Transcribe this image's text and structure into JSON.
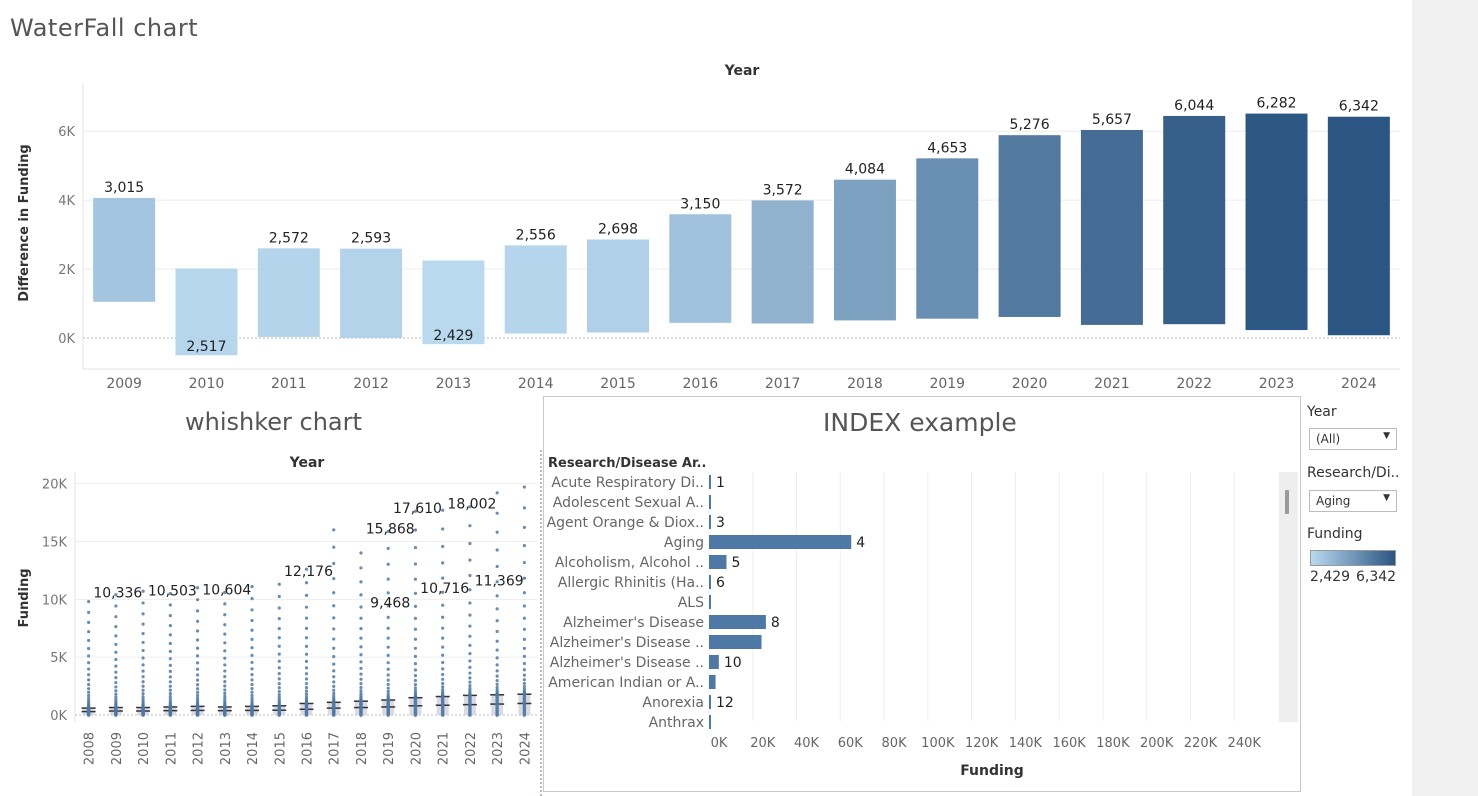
{
  "dashboard": {
    "title": "WaterFall  chart",
    "whisker_title": "whishker chart",
    "index_title": "INDEX example"
  },
  "filters": {
    "year_label": "Year",
    "year_value": "(All)",
    "research_label": "Research/Di..",
    "research_value": "Aging",
    "funding_label": "Funding",
    "funding_min": "2,429",
    "funding_max": "6,342",
    "legend_colors": [
      "#b9d9ef",
      "#2b5582"
    ]
  },
  "chart_data": [
    {
      "type": "bar",
      "subtype": "waterfall",
      "xlabel": "Year",
      "ylabel": "Difference in Funding",
      "categories": [
        "2009",
        "2010",
        "2011",
        "2012",
        "2013",
        "2014",
        "2015",
        "2016",
        "2017",
        "2018",
        "2019",
        "2020",
        "2021",
        "2022",
        "2023",
        "2024"
      ],
      "values": [
        3015,
        2517,
        2572,
        2593,
        2429,
        2556,
        2698,
        3150,
        3572,
        4084,
        4653,
        5276,
        5657,
        6044,
        6282,
        6342
      ],
      "labels": [
        "3,015",
        "2,517",
        "2,572",
        "2,593",
        "2,429",
        "2,556",
        "2,698",
        "3,150",
        "3,572",
        "4,084",
        "4,653",
        "5,276",
        "5,657",
        "6,044",
        "6,282",
        "6,342"
      ],
      "bar_low": [
        1050,
        -500,
        30,
        0,
        -180,
        130,
        160,
        440,
        420,
        510,
        560,
        610,
        380,
        400,
        230,
        80
      ],
      "bar_high": [
        4065,
        2017,
        2602,
        2593,
        2249,
        2686,
        2858,
        3590,
        3992,
        4594,
        5213,
        5886,
        6037,
        6444,
        6512,
        6422
      ],
      "label_position": [
        "above",
        "below",
        "above",
        "above",
        "below",
        "above",
        "above",
        "above",
        "above",
        "above",
        "above",
        "above",
        "above",
        "above",
        "above",
        "above"
      ],
      "ylim": [
        -900,
        7400
      ],
      "yticks": [
        0,
        2000,
        4000,
        6000
      ],
      "ytick_labels": [
        "0K",
        "2K",
        "4K",
        "6K"
      ],
      "color_scale": [
        "#b9d9ef",
        "#2b5582"
      ],
      "grid": true
    },
    {
      "type": "boxplot",
      "xlabel": "Year",
      "ylabel": "Funding",
      "categories": [
        "2008",
        "2009",
        "2010",
        "2011",
        "2012",
        "2013",
        "2014",
        "2015",
        "2016",
        "2017",
        "2018",
        "2019",
        "2020",
        "2021",
        "2022",
        "2023",
        "2024"
      ],
      "max_outlier": [
        9800,
        10400,
        10700,
        10500,
        11000,
        10600,
        11100,
        11300,
        12600,
        16000,
        14000,
        15868,
        17610,
        17700,
        18002,
        19200,
        19700
      ],
      "outlier_labels": [
        {
          "x": "2009",
          "text": "10,336",
          "value": 10336
        },
        {
          "x": "2011",
          "text": "10,503",
          "value": 10503
        },
        {
          "x": "2013",
          "text": "10,604",
          "value": 10604
        },
        {
          "x": "2016",
          "text": "12,176",
          "value": 12176
        },
        {
          "x": "2019",
          "text": "15,868",
          "value": 15868
        },
        {
          "x": "2020",
          "text": "17,610",
          "value": 17610
        },
        {
          "x": "2022",
          "text": "18,002",
          "value": 18002
        },
        {
          "x": "2019",
          "text": "9,468",
          "value": 9468
        },
        {
          "x": "2021",
          "text": "10,716",
          "value": 10716
        },
        {
          "x": "2023",
          "text": "11,369",
          "value": 11369
        }
      ],
      "median": [
        300,
        350,
        350,
        380,
        400,
        380,
        400,
        420,
        500,
        600,
        650,
        700,
        800,
        850,
        900,
        950,
        1000
      ],
      "upper_whisker": [
        600,
        650,
        650,
        700,
        750,
        700,
        750,
        800,
        1000,
        1100,
        1200,
        1300,
        1500,
        1600,
        1700,
        1750,
        1800
      ],
      "ylim": [
        -600,
        21000
      ],
      "yticks": [
        0,
        5000,
        10000,
        15000,
        20000
      ],
      "ytick_labels": [
        "0K",
        "5K",
        "10K",
        "15K",
        "20K"
      ],
      "point_color": "#4e79a7"
    },
    {
      "type": "bar",
      "orientation": "horizontal",
      "xlabel": "Funding",
      "column_header": "Research/Disease Ar..",
      "categories": [
        "Acute Respiratory Di..",
        "Adolescent Sexual A..",
        "Agent Orange & Diox..",
        "Aging",
        "Alcoholism, Alcohol ..",
        "Allergic Rhinitis (Ha..",
        "ALS",
        "Alzheimer's Disease",
        "Alzheimer's Disease ..",
        "Alzheimer's Disease ..",
        "American Indian or A..",
        "Anorexia",
        "Anthrax"
      ],
      "values": [
        800,
        300,
        200,
        65000,
        8000,
        300,
        900,
        26000,
        24000,
        4500,
        3000,
        200,
        200
      ],
      "index_labels": [
        "1",
        "",
        "3",
        "4",
        "5",
        "6",
        "",
        "8",
        "",
        "10",
        "",
        "12",
        ""
      ],
      "xlim": [
        0,
        260000
      ],
      "xticks": [
        0,
        20000,
        40000,
        60000,
        80000,
        100000,
        120000,
        140000,
        160000,
        180000,
        200000,
        220000,
        240000
      ],
      "xtick_labels": [
        "0K",
        "20K",
        "40K",
        "60K",
        "80K",
        "100K",
        "120K",
        "140K",
        "160K",
        "180K",
        "200K",
        "220K",
        "240K"
      ],
      "bar_color": "#4e79a7"
    }
  ]
}
